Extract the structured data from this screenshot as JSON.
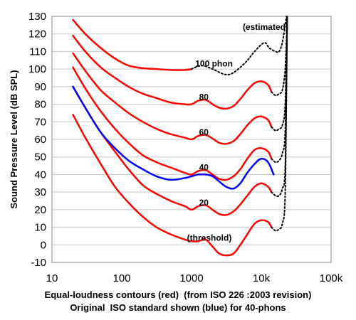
{
  "captions": {
    "line1": "Equal-loudness contours (red)  (from ISO 226 :2003 revision)",
    "line2": "Original  ISO standard shown (blue) for 40-phons"
  },
  "chart_data": {
    "type": "line",
    "ylabel": "Sound Pressure Level (dB SPL)",
    "xscale": "log",
    "xlim": [
      10,
      100000
    ],
    "ylim": [
      -10,
      130
    ],
    "grid": true,
    "x_ticks": [
      {
        "v": 10,
        "label": "10"
      },
      {
        "v": 100,
        "label": "100"
      },
      {
        "v": 1000,
        "label": "1000"
      },
      {
        "v": 10000,
        "label": "10k"
      },
      {
        "v": 100000,
        "label": "100k"
      }
    ],
    "y_ticks": [
      -10,
      0,
      10,
      20,
      30,
      40,
      50,
      60,
      70,
      80,
      90,
      100,
      110,
      120,
      130
    ],
    "colors": {
      "red": "#ff0000",
      "blue": "#0000ff",
      "dotted": "#000000",
      "grid": "#c8c8c8"
    },
    "annotations": [
      {
        "text": "(estimated)",
        "x": 11500,
        "y": 124
      },
      {
        "text": "100 phon",
        "x": 2100,
        "y": 103
      },
      {
        "text": "80",
        "x": 1500,
        "y": 84
      },
      {
        "text": "60",
        "x": 1500,
        "y": 64
      },
      {
        "text": "40",
        "x": 1500,
        "y": 44
      },
      {
        "text": "20",
        "x": 1500,
        "y": 24
      },
      {
        "text": "(threshold)",
        "x": 1800,
        "y": 4
      }
    ],
    "series": [
      {
        "color": "red",
        "style": "solid",
        "points": [
          [
            20,
            128
          ],
          [
            30,
            120
          ],
          [
            50,
            112
          ],
          [
            80,
            106
          ],
          [
            125,
            102
          ],
          [
            200,
            100.5
          ],
          [
            315,
            100
          ],
          [
            500,
            99.5
          ],
          [
            800,
            99.5
          ],
          [
            1000,
            100
          ]
        ]
      },
      {
        "color": "dotted",
        "style": "dotted",
        "points": [
          [
            1000,
            100
          ],
          [
            1400,
            102
          ],
          [
            2000,
            100
          ],
          [
            3000,
            97
          ],
          [
            4000,
            98
          ],
          [
            6000,
            104
          ],
          [
            8000,
            110
          ],
          [
            11000,
            115
          ],
          [
            13000,
            112
          ],
          [
            16000,
            110
          ],
          [
            18000,
            110
          ],
          [
            20000,
            115
          ],
          [
            22000,
            125
          ],
          [
            23000,
            130
          ]
        ]
      },
      {
        "color": "red",
        "style": "solid",
        "points": [
          [
            20,
            119
          ],
          [
            30,
            110
          ],
          [
            50,
            101
          ],
          [
            80,
            95
          ],
          [
            125,
            90
          ],
          [
            200,
            86
          ],
          [
            315,
            83.5
          ],
          [
            500,
            81
          ],
          [
            800,
            80
          ],
          [
            1000,
            80
          ],
          [
            1250,
            82
          ],
          [
            1600,
            82.5
          ],
          [
            2000,
            80
          ],
          [
            2500,
            78
          ],
          [
            3150,
            77.5
          ],
          [
            4000,
            79
          ],
          [
            5000,
            83
          ],
          [
            6300,
            88
          ],
          [
            8000,
            92
          ],
          [
            10000,
            93
          ],
          [
            12500,
            91
          ],
          [
            14000,
            87
          ]
        ]
      },
      {
        "color": "dotted",
        "style": "dotted",
        "points": [
          [
            14000,
            87
          ],
          [
            16000,
            85
          ],
          [
            18000,
            86
          ],
          [
            20000,
            88
          ],
          [
            22000,
            100
          ],
          [
            23500,
            130
          ]
        ]
      },
      {
        "color": "red",
        "style": "solid",
        "points": [
          [
            20,
            109
          ],
          [
            30,
            99
          ],
          [
            50,
            88
          ],
          [
            80,
            81
          ],
          [
            125,
            75
          ],
          [
            200,
            70
          ],
          [
            315,
            66
          ],
          [
            500,
            63
          ],
          [
            800,
            61
          ],
          [
            1000,
            60
          ],
          [
            1250,
            62
          ],
          [
            1600,
            62.5
          ],
          [
            2000,
            60.5
          ],
          [
            2500,
            58
          ],
          [
            3150,
            57.5
          ],
          [
            4000,
            59
          ],
          [
            5000,
            63
          ],
          [
            6300,
            68
          ],
          [
            8000,
            72
          ],
          [
            10000,
            73
          ],
          [
            12500,
            71
          ],
          [
            14000,
            67
          ]
        ]
      },
      {
        "color": "dotted",
        "style": "dotted",
        "points": [
          [
            14000,
            67
          ],
          [
            16000,
            65
          ],
          [
            18000,
            66
          ],
          [
            20000,
            68
          ],
          [
            22000,
            80
          ],
          [
            23500,
            130
          ]
        ]
      },
      {
        "color": "red",
        "style": "solid",
        "points": [
          [
            20,
            101
          ],
          [
            30,
            89
          ],
          [
            50,
            76
          ],
          [
            80,
            66
          ],
          [
            125,
            58
          ],
          [
            200,
            51
          ],
          [
            315,
            47
          ],
          [
            500,
            44
          ],
          [
            800,
            41
          ],
          [
            1000,
            40
          ],
          [
            1250,
            42
          ],
          [
            1600,
            42.5
          ],
          [
            2000,
            40
          ],
          [
            2500,
            37.5
          ],
          [
            3150,
            37
          ],
          [
            4000,
            39
          ],
          [
            5000,
            43
          ],
          [
            6300,
            49
          ],
          [
            8000,
            54
          ],
          [
            10000,
            55
          ],
          [
            12500,
            53
          ],
          [
            14000,
            49
          ]
        ]
      },
      {
        "color": "dotted",
        "style": "dotted",
        "points": [
          [
            14000,
            49
          ],
          [
            16000,
            47
          ],
          [
            18000,
            48
          ],
          [
            20000,
            52
          ],
          [
            22000,
            65
          ],
          [
            23500,
            130
          ]
        ]
      },
      {
        "color": "red",
        "style": "solid",
        "points": [
          [
            20,
            90
          ],
          [
            30,
            78
          ],
          [
            50,
            64
          ],
          [
            80,
            53
          ],
          [
            125,
            43
          ],
          [
            200,
            34
          ],
          [
            315,
            29
          ],
          [
            500,
            25
          ],
          [
            800,
            22
          ],
          [
            1000,
            20
          ],
          [
            1250,
            22
          ],
          [
            1600,
            22.5
          ],
          [
            2000,
            20
          ],
          [
            2500,
            17.5
          ],
          [
            3150,
            17
          ],
          [
            4000,
            19
          ],
          [
            5000,
            23
          ],
          [
            6300,
            28
          ],
          [
            8000,
            33
          ],
          [
            10000,
            35
          ],
          [
            12500,
            33
          ],
          [
            14000,
            30
          ]
        ]
      },
      {
        "color": "dotted",
        "style": "dotted",
        "points": [
          [
            14000,
            30
          ],
          [
            16000,
            28
          ],
          [
            18000,
            28
          ],
          [
            20000,
            32
          ],
          [
            22000,
            45
          ],
          [
            23500,
            130
          ]
        ]
      },
      {
        "color": "red",
        "style": "solid",
        "points": [
          [
            20,
            74
          ],
          [
            30,
            61
          ],
          [
            50,
            46
          ],
          [
            80,
            33
          ],
          [
            125,
            24
          ],
          [
            200,
            16
          ],
          [
            315,
            10
          ],
          [
            500,
            6
          ],
          [
            800,
            3
          ],
          [
            1000,
            2
          ],
          [
            1250,
            2
          ],
          [
            1600,
            3
          ],
          [
            2000,
            -1
          ],
          [
            2500,
            -5
          ],
          [
            3150,
            -6
          ],
          [
            4000,
            -5
          ],
          [
            5000,
            0
          ],
          [
            6300,
            6
          ],
          [
            8000,
            12
          ],
          [
            10000,
            14
          ],
          [
            12500,
            13
          ],
          [
            14000,
            10
          ]
        ]
      },
      {
        "color": "dotted",
        "style": "dotted",
        "points": [
          [
            14000,
            10
          ],
          [
            16000,
            8
          ],
          [
            18000,
            9
          ],
          [
            20000,
            12
          ],
          [
            22000,
            30
          ],
          [
            23500,
            130
          ]
        ]
      },
      {
        "color": "blue",
        "style": "solid",
        "points": [
          [
            20,
            90
          ],
          [
            30,
            78
          ],
          [
            50,
            64
          ],
          [
            80,
            55
          ],
          [
            125,
            48
          ],
          [
            200,
            43
          ],
          [
            315,
            39
          ],
          [
            500,
            37
          ],
          [
            800,
            38
          ],
          [
            1000,
            39
          ],
          [
            1250,
            40
          ],
          [
            1600,
            40
          ],
          [
            2000,
            39
          ],
          [
            2500,
            36
          ],
          [
            3150,
            33
          ],
          [
            4000,
            32
          ],
          [
            5000,
            35
          ],
          [
            6300,
            41
          ],
          [
            8000,
            46
          ],
          [
            10000,
            49
          ],
          [
            12500,
            47
          ],
          [
            15000,
            40
          ]
        ]
      }
    ]
  }
}
